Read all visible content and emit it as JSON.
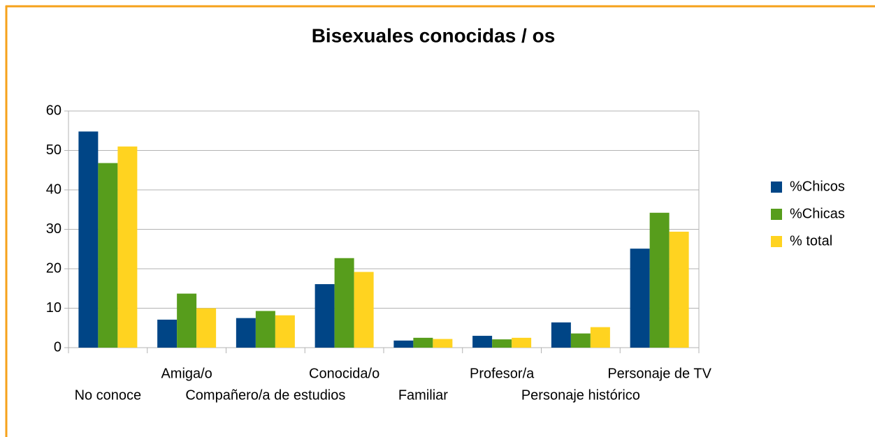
{
  "chart_data": {
    "type": "bar",
    "title": "Bisexuales conocidas / os",
    "categories": [
      "No conoce",
      "Amiga/o",
      "Compañero/a de estudios",
      "Conocida/o",
      "Familiar",
      "Profesor/a",
      "Personaje histórico",
      "Personaje de TV"
    ],
    "series": [
      {
        "name": "%Chicos",
        "color": "#004586",
        "values": [
          54.8,
          7.1,
          7.5,
          16.1,
          1.8,
          3.0,
          6.4,
          25.1
        ]
      },
      {
        "name": "%Chicas",
        "color": "#579d1c",
        "values": [
          46.8,
          13.7,
          9.3,
          22.7,
          2.5,
          2.1,
          3.6,
          34.2
        ]
      },
      {
        "name": "% total",
        "color": "#ffd320",
        "values": [
          51.0,
          10.0,
          8.2,
          19.2,
          2.2,
          2.5,
          5.2,
          29.4
        ]
      }
    ],
    "ylim": [
      0,
      60
    ],
    "yticks": [
      0,
      10,
      20,
      30,
      40,
      50,
      60
    ],
    "grid": true,
    "legend": "right"
  }
}
